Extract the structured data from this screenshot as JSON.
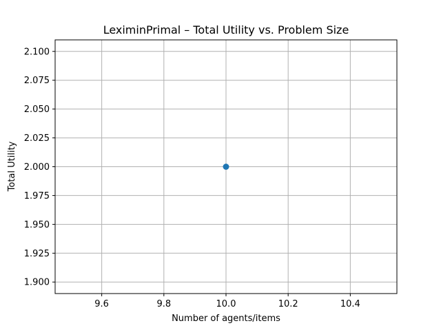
{
  "chart_data": {
    "type": "scatter",
    "title": "LeximinPrimal – Total Utility vs. Problem Size",
    "xlabel": "Number of agents/items",
    "ylabel": "Total Utility",
    "xlim": [
      9.45,
      10.55
    ],
    "ylim": [
      1.89,
      2.11
    ],
    "x_ticks": [
      9.6,
      9.8,
      10.0,
      10.2,
      10.4
    ],
    "y_ticks": [
      1.9,
      1.925,
      1.95,
      1.975,
      2.0,
      2.025,
      2.05,
      2.075,
      2.1
    ],
    "x_tick_labels": [
      "9.6",
      "9.8",
      "10.0",
      "10.2",
      "10.4"
    ],
    "y_tick_labels": [
      "1.900",
      "1.925",
      "1.950",
      "1.975",
      "2.000",
      "2.025",
      "2.050",
      "2.075",
      "2.100"
    ],
    "grid": true,
    "series": [
      {
        "x": [
          10
        ],
        "y": [
          2.0
        ],
        "color": "#1f77b4",
        "marker": "circle"
      }
    ]
  }
}
